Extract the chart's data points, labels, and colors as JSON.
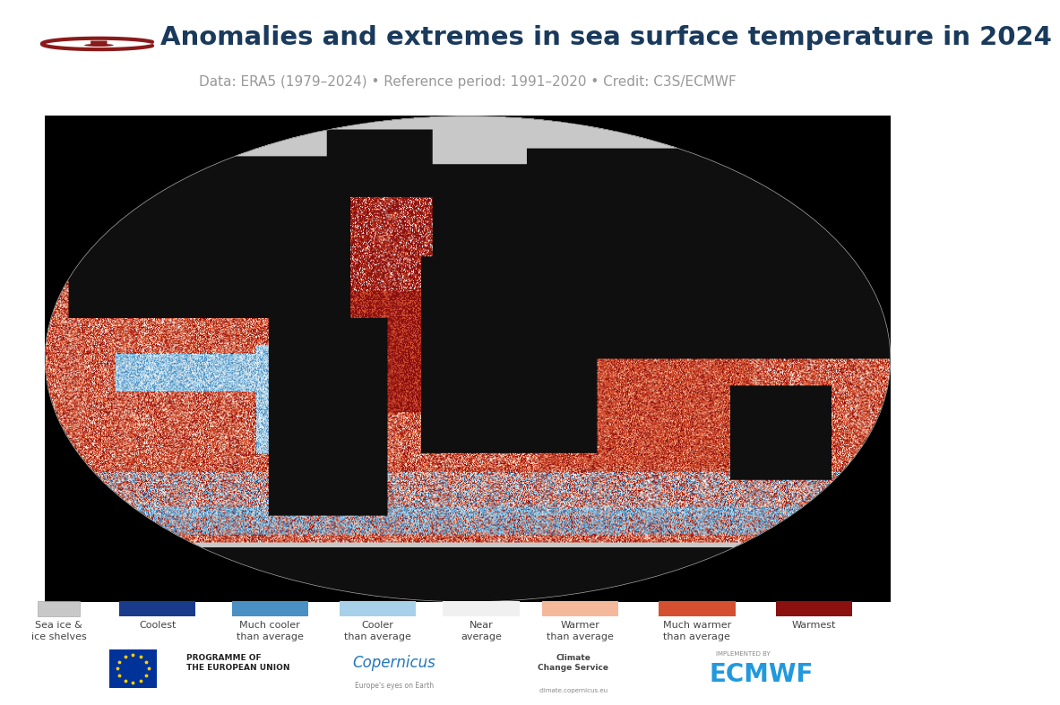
{
  "title": "Anomalies and extremes in sea surface temperature in 2024",
  "subtitle": "Data: ERA5 (1979–2024) • Reference period: 1991–2020 • Credit: C3S/ECMWF",
  "title_color": "#1a3a5c",
  "subtitle_color": "#999999",
  "background_color": "#ffffff",
  "icon_color": "#8b1a1a",
  "title_fontsize": 21,
  "subtitle_fontsize": 11,
  "legend_items": [
    {
      "label": "Sea ice &\nice shelves",
      "color": "#c8c8c8",
      "small": true
    },
    {
      "label": "Coolest",
      "color": "#1a3a8c"
    },
    {
      "label": "Much cooler\nthan average",
      "color": "#4a90c4"
    },
    {
      "label": "Cooler\nthan average",
      "color": "#a8d0e8"
    },
    {
      "label": "Near\naverage",
      "color": "#f0f0f0"
    },
    {
      "label": "Warmer\nthan average",
      "color": "#f4b89a"
    },
    {
      "label": "Much warmer\nthan average",
      "color": "#d45030"
    },
    {
      "label": "Warmest",
      "color": "#8b1010"
    }
  ],
  "sst_colors": {
    "coolest": [
      26,
      58,
      140
    ],
    "much_cool": [
      74,
      144,
      196
    ],
    "cool": [
      168,
      208,
      232
    ],
    "near": [
      240,
      240,
      240
    ],
    "warm": [
      244,
      184,
      154
    ],
    "much_warm": [
      212,
      80,
      48
    ],
    "warmest": [
      139,
      16,
      16
    ],
    "land": [
      15,
      15,
      15
    ],
    "sea_ice": [
      200,
      200,
      200
    ],
    "outside": [
      0,
      0,
      0
    ]
  }
}
